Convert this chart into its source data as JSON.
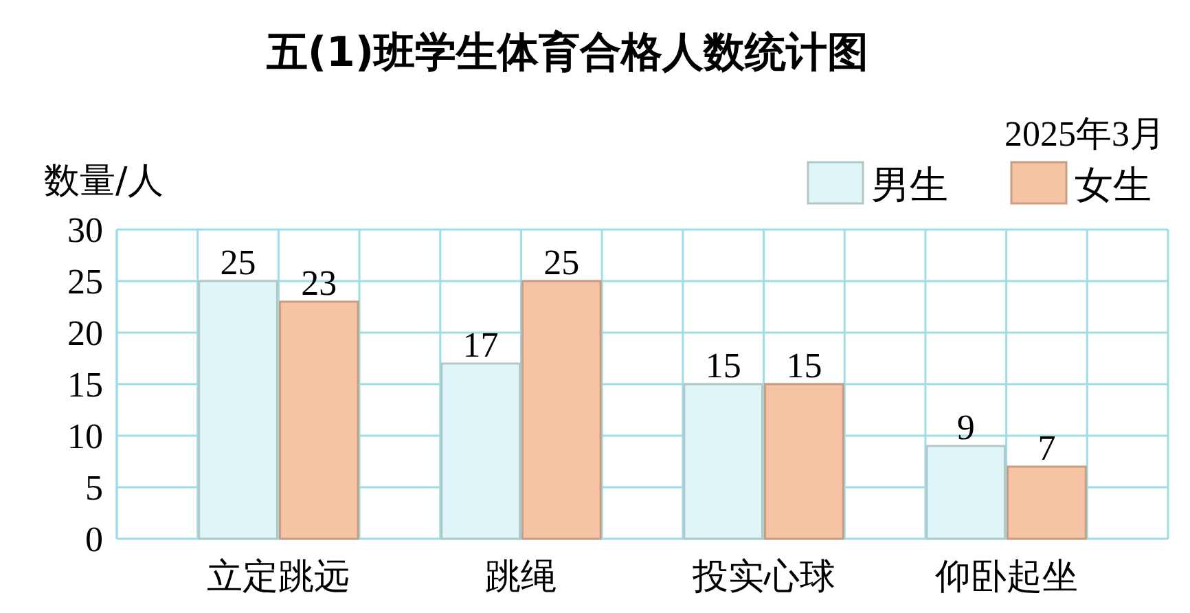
{
  "chart_data": {
    "type": "bar",
    "title": "五(1)班学生体育合格人数统计图",
    "ylabel": "数量/人",
    "annotations": [
      "2025年3月"
    ],
    "categories": [
      "立定跳远",
      "跳绳",
      "投实心球",
      "仰卧起坐"
    ],
    "series": [
      {
        "name": "男生",
        "color": "#dff6f8",
        "values": [
          25,
          17,
          15,
          9
        ]
      },
      {
        "name": "女生",
        "color": "#f6c3a4",
        "values": [
          23,
          25,
          15,
          7
        ]
      }
    ],
    "ylim": [
      0,
      30
    ],
    "yticks": [
      0,
      5,
      10,
      15,
      20,
      25,
      30
    ],
    "grid": true,
    "legend": "top right",
    "data_labels": true
  }
}
